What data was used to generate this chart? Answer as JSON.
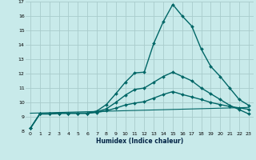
{
  "xlabel": "Humidex (Indice chaleur)",
  "background_color": "#c8eaea",
  "grid_color": "#a8cccc",
  "line_color": "#006666",
  "xlim": [
    -0.5,
    23.5
  ],
  "ylim": [
    8,
    17
  ],
  "xticks": [
    0,
    1,
    2,
    3,
    4,
    5,
    6,
    7,
    8,
    9,
    10,
    11,
    12,
    13,
    14,
    15,
    16,
    17,
    18,
    19,
    20,
    21,
    22,
    23
  ],
  "yticks": [
    8,
    9,
    10,
    11,
    12,
    13,
    14,
    15,
    16,
    17
  ],
  "series": [
    {
      "x": [
        0,
        1,
        2,
        3,
        4,
        5,
        6,
        7,
        8,
        9,
        10,
        11,
        12,
        13,
        14,
        15,
        16,
        17,
        18,
        19,
        20,
        21,
        22,
        23
      ],
      "y": [
        8.2,
        9.2,
        9.2,
        9.25,
        9.25,
        9.25,
        9.25,
        9.4,
        9.85,
        10.6,
        11.4,
        12.05,
        12.1,
        14.1,
        15.6,
        16.8,
        16.0,
        15.3,
        13.7,
        12.5,
        11.8,
        11.0,
        10.2,
        9.8
      ],
      "marker": "D",
      "markersize": 2.0,
      "linewidth": 1.0,
      "has_markers": true
    },
    {
      "x": [
        0,
        1,
        2,
        3,
        4,
        5,
        6,
        7,
        8,
        9,
        10,
        11,
        12,
        13,
        14,
        15,
        16,
        17,
        18,
        19,
        20,
        21,
        22,
        23
      ],
      "y": [
        8.2,
        9.2,
        9.2,
        9.25,
        9.25,
        9.25,
        9.25,
        9.35,
        9.55,
        10.0,
        10.5,
        10.9,
        11.0,
        11.4,
        11.8,
        12.1,
        11.8,
        11.5,
        11.0,
        10.6,
        10.2,
        9.8,
        9.5,
        9.2
      ],
      "marker": "D",
      "markersize": 2.0,
      "linewidth": 1.0,
      "has_markers": true
    },
    {
      "x": [
        0,
        1,
        2,
        3,
        4,
        5,
        6,
        7,
        8,
        9,
        10,
        11,
        12,
        13,
        14,
        15,
        16,
        17,
        18,
        19,
        20,
        21,
        22,
        23
      ],
      "y": [
        8.2,
        9.2,
        9.2,
        9.25,
        9.25,
        9.25,
        9.25,
        9.3,
        9.42,
        9.6,
        9.82,
        9.95,
        10.05,
        10.3,
        10.55,
        10.75,
        10.55,
        10.38,
        10.2,
        10.0,
        9.85,
        9.72,
        9.62,
        9.52
      ],
      "marker": "D",
      "markersize": 2.0,
      "linewidth": 1.0,
      "has_markers": true
    },
    {
      "x": [
        0,
        23
      ],
      "y": [
        9.25,
        9.65
      ],
      "marker": null,
      "markersize": 0,
      "linewidth": 0.8,
      "has_markers": false
    }
  ]
}
